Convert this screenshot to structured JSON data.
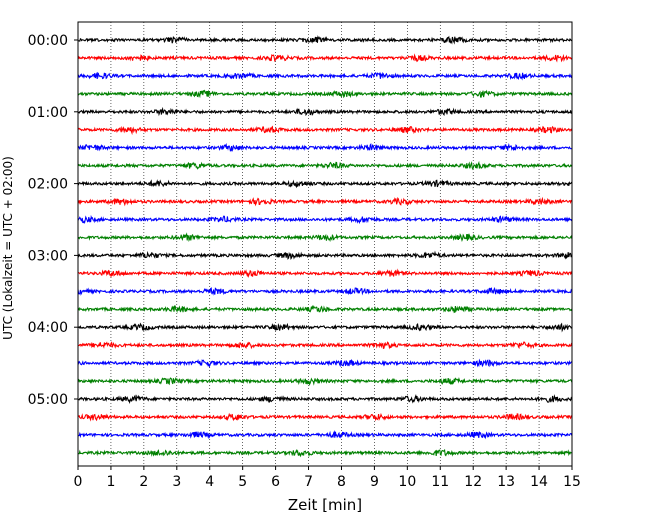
{
  "chart_data": {
    "type": "line",
    "title": "",
    "xlabel": "Zeit  [min]",
    "ylabel": "UTC (Lokalzeit = UTC + 02:00)",
    "xlim": [
      0,
      15
    ],
    "x_ticks": [
      "0",
      "1",
      "2",
      "3",
      "4",
      "5",
      "6",
      "7",
      "8",
      "9",
      "10",
      "11",
      "12",
      "13",
      "14",
      "15"
    ],
    "y_ticks": [
      "00:00",
      "01:00",
      "02:00",
      "03:00",
      "04:00",
      "05:00"
    ],
    "grid": "vertical dotted lines at each minute",
    "line_interval_minutes": 15,
    "line_starts": [
      "00:00",
      "00:15",
      "00:30",
      "00:45",
      "01:00",
      "01:15",
      "01:30",
      "01:45",
      "02:00",
      "02:15",
      "02:30",
      "02:45",
      "03:00",
      "03:15",
      "03:30",
      "03:45",
      "04:00",
      "04:15",
      "04:30",
      "04:45",
      "05:00",
      "05:15",
      "05:30",
      "05:45"
    ],
    "colors": [
      "#000000",
      "#ff0000",
      "#0000ff",
      "#008000"
    ]
  }
}
